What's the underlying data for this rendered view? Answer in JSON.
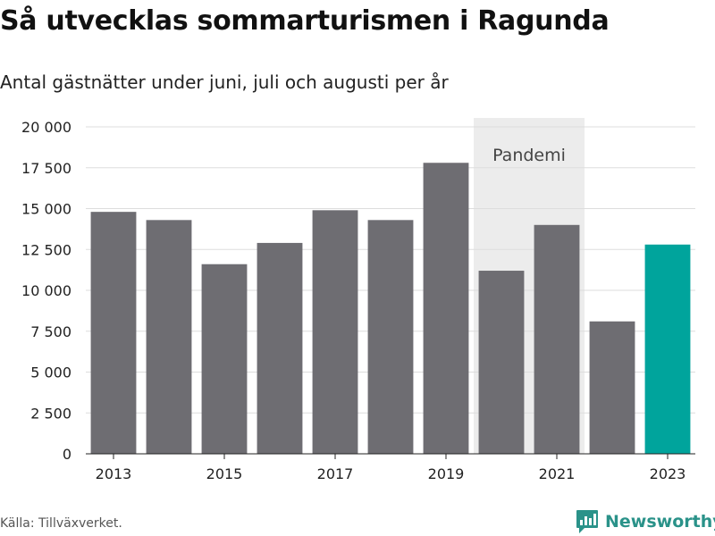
{
  "title": "Så utvecklas sommarturismen i Ragunda",
  "subtitle": "Antal gästnätter under juni, juli och augusti per år",
  "source": "Källa: Tillväxverket.",
  "brand": {
    "name": "Newsworthy",
    "icon": "bar-chart-logo-icon"
  },
  "colors": {
    "bar": "#6e6d72",
    "highlight": "#00a49c",
    "band": "#ececec",
    "brand": "#2a9289"
  },
  "chart_data": {
    "type": "bar",
    "categories": [
      "2013",
      "2014",
      "2015",
      "2016",
      "2017",
      "2018",
      "2019",
      "2020",
      "2021",
      "2022",
      "2023"
    ],
    "values": [
      14800,
      14300,
      11600,
      12900,
      14900,
      14300,
      17800,
      11200,
      14000,
      8100,
      12800
    ],
    "highlight_category": "2023",
    "ylim": [
      0,
      20000
    ],
    "yticks": [
      0,
      2500,
      5000,
      7500,
      10000,
      12500,
      15000,
      17500,
      20000
    ],
    "ytick_labels": [
      "0",
      "2 500",
      "5 000",
      "7 500",
      "10 000",
      "12 500",
      "15 000",
      "17 500",
      "20 000"
    ],
    "xtick_labels": [
      "2013",
      "2015",
      "2017",
      "2019",
      "2021",
      "2023"
    ],
    "grid": true,
    "annotation": {
      "label": "Pandemi",
      "from": "2020",
      "to": "2021"
    }
  }
}
